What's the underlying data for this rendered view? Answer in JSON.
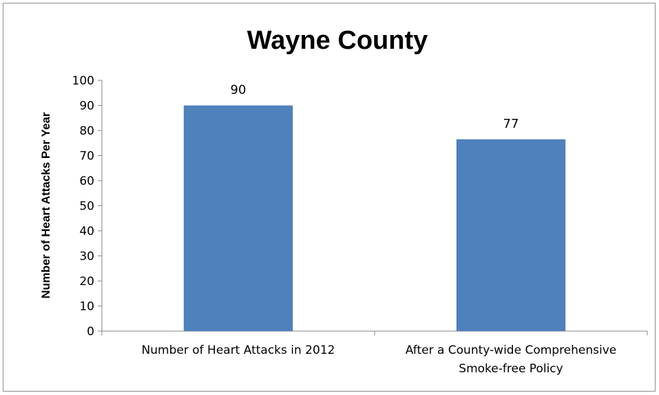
{
  "chart_data": {
    "type": "bar",
    "title": "Wayne County",
    "ylabel": "Number of Heart Attacks Per Year",
    "xlabel": "",
    "categories": [
      [
        "Number of Heart Attacks in 2012"
      ],
      [
        "After a County-wide Comprehensive",
        "Smoke-free Policy"
      ]
    ],
    "values": [
      90,
      76.5
    ],
    "data_labels": [
      "90",
      "77"
    ],
    "ylim": [
      0,
      100
    ],
    "yticks": [
      0,
      10,
      20,
      30,
      40,
      50,
      60,
      70,
      80,
      90,
      100
    ],
    "bar_color": "#4f81bd",
    "grid": false,
    "legend": "none"
  }
}
